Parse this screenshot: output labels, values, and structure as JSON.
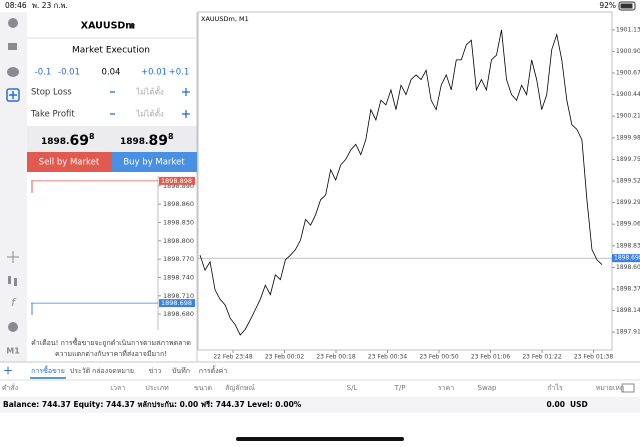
{
  "status_bar": {
    "time": "08:46",
    "date": "พ. 23 ก.พ.",
    "battery": "92%"
  },
  "order_panel": {
    "symbol": "XAUUSDm",
    "mode": "Market Execution",
    "volume_steps": [
      "-0.1",
      "-0.01",
      "+0.01",
      "+0.1"
    ],
    "volume": "0.04",
    "stop_loss": {
      "label": "Stop Loss",
      "value": "ไม่ได้ตั้ง"
    },
    "take_profit": {
      "label": "Take Profit",
      "value": "ไม่ได้ตั้ง"
    },
    "bid": {
      "price": "1898.",
      "big": "69",
      "sup": "8"
    },
    "ask": {
      "price": "1898.",
      "big": "89",
      "sup": "8"
    },
    "sell_button": "Sell by Market",
    "buy_button": "Buy by Market",
    "warning": [
      "คำเตือน! การซื้อขายจะถูกดำเนินการตามสภาพตลาด",
      "ความแตกต่างกับราคาที่ส่งอาจมีมาก!"
    ]
  },
  "mini_chart": {
    "ylim": [
      1898.654,
      1898.906
    ],
    "yticks": [
      {
        "value": 1898.89,
        "label": "1898.890"
      },
      {
        "value": 1898.86,
        "label": "1898.860"
      },
      {
        "value": 1898.83,
        "label": "1898.830"
      },
      {
        "value": 1898.8,
        "label": "1898.800"
      },
      {
        "value": 1898.77,
        "label": "1898.770"
      },
      {
        "value": 1898.74,
        "label": "1898.740"
      },
      {
        "value": 1898.71,
        "label": "1898.710"
      },
      {
        "value": 1898.68,
        "label": "1898.680"
      }
    ],
    "ask": {
      "value": 1898.898,
      "label": "1898.898",
      "color": "#e05a4f"
    },
    "bid": {
      "value": 1898.698,
      "label": "1898.698",
      "color": "#3b82e0"
    }
  },
  "chart_data": {
    "type": "line",
    "title": "XAUUSDm, M1",
    "color": "#000000",
    "x_labels": [
      "22 Feb 23:48",
      "23 Feb 00:02",
      "23 Feb 00:18",
      "23 Feb 00:34",
      "23 Feb 00:50",
      "23 Feb 01:06",
      "23 Feb 01:22",
      "23 Feb 01:38"
    ],
    "values": [
      1898.73,
      1898.57,
      1898.66,
      1898.36,
      1898.26,
      1898.2,
      1898.06,
      1897.99,
      1897.88,
      1897.94,
      1898.04,
      1898.15,
      1898.26,
      1898.41,
      1898.31,
      1898.52,
      1898.47,
      1898.68,
      1898.73,
      1898.79,
      1898.89,
      1899.11,
      1899.05,
      1899.16,
      1899.32,
      1899.37,
      1899.64,
      1899.53,
      1899.69,
      1899.75,
      1899.85,
      1899.91,
      1899.8,
      1899.96,
      1900.28,
      1900.17,
      1900.38,
      1900.33,
      1900.49,
      1900.28,
      1900.54,
      1900.44,
      1900.6,
      1900.65,
      1900.6,
      1900.7,
      1900.38,
      1900.28,
      1900.54,
      1900.65,
      1900.49,
      1900.81,
      1900.81,
      1900.97,
      1901.02,
      1900.49,
      1900.6,
      1900.49,
      1900.81,
      1900.86,
      1901.13,
      1900.6,
      1900.44,
      1900.38,
      1900.54,
      1900.44,
      1900.81,
      1900.6,
      1900.28,
      1900.44,
      1900.92,
      1901.08,
      1900.81,
      1900.38,
      1900.12,
      1900.07,
      1899.96,
      1899.32,
      1898.79,
      1898.68,
      1898.63
    ],
    "ylim": [
      1897.72,
      1901.32
    ],
    "yticks": [
      {
        "value": 1901.13,
        "label": "1901.130"
      },
      {
        "value": 1900.9,
        "label": "1900.900"
      },
      {
        "value": 1900.67,
        "label": "1900.670"
      },
      {
        "value": 1900.44,
        "label": "1900.440"
      },
      {
        "value": 1900.21,
        "label": "1900.210"
      },
      {
        "value": 1899.98,
        "label": "1899.980"
      },
      {
        "value": 1899.75,
        "label": "1899.750"
      },
      {
        "value": 1899.52,
        "label": "1899.520"
      },
      {
        "value": 1899.29,
        "label": "1899.290"
      },
      {
        "value": 1899.06,
        "label": "1899.060"
      },
      {
        "value": 1898.83,
        "label": "1898.830"
      },
      {
        "value": 1898.6,
        "label": "1898.600"
      },
      {
        "value": 1898.37,
        "label": "1898.370"
      },
      {
        "value": 1898.14,
        "label": "1898.140"
      },
      {
        "value": 1897.91,
        "label": "1897.910"
      }
    ],
    "current_price": {
      "value": 1898.698,
      "label": "1898.698",
      "color": "#3b82e0"
    }
  },
  "tabs": [
    "การซื้อขาย",
    "ประวัติ",
    "กล่องจดหมาย",
    "ข่าว",
    "บันทึก",
    "การตั้งค่า"
  ],
  "columns": [
    "คำสั่ง",
    "เวลา",
    "ประเภท",
    "ขนาด",
    "สัญลักษณ์",
    "S/L",
    "T/P",
    "ราคา",
    "Swap",
    "กำไร",
    "หมายเหตุ"
  ],
  "footer": {
    "summary": "Balance: 744.37 Equity: 744.37 หลักประกัน: 0.00 ฟรี: 744.37 Level: 0.00%",
    "profit": "0.00",
    "currency": "USD"
  }
}
